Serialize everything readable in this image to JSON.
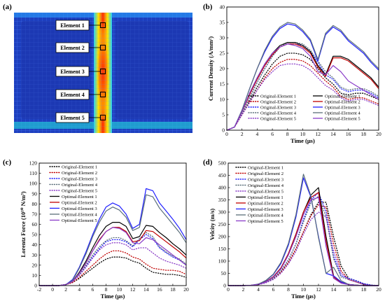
{
  "panel_labels": {
    "a": "(a)",
    "b": "(b)",
    "c": "(c)",
    "d": "(d)"
  },
  "panel_a": {
    "element_labels": [
      "Element 1",
      "Element 2",
      "Element 3",
      "Element 4",
      "Element 5"
    ],
    "colors": {
      "background": "#1d3fbf",
      "mesh": "#5a8cff",
      "hot": "#ff2a00",
      "warm": "#ffe600"
    }
  },
  "series_styles": {
    "names": [
      "Original-Element 1",
      "Original-Element 2",
      "Original-Element 3",
      "Original-Element 4",
      "Original-Element 5",
      "Optimal-Element 1",
      "Optimal-Element 2",
      "Optimal-Element 3",
      "Optimal-Element 4",
      "Optimal-Element 5"
    ],
    "colors": [
      "#000000",
      "#c00000",
      "#1f1fff",
      "#5a6e7a",
      "#8a3cc8",
      "#000000",
      "#c00000",
      "#1f1fff",
      "#5a6e7a",
      "#8a3cc8"
    ]
  },
  "chart_data": [
    {
      "id": "b",
      "type": "line",
      "xlabel": "Time (μs)",
      "ylabel": "Current Density (A/mm²)",
      "xlim": [
        0,
        20
      ],
      "ylim": [
        0,
        40
      ],
      "xticks": [
        0,
        2,
        4,
        6,
        8,
        10,
        12,
        14,
        16,
        18,
        20
      ],
      "yticks": [
        0,
        5,
        10,
        15,
        20,
        25,
        30,
        35,
        40
      ],
      "legend": "bottom-right-2col",
      "x": [
        0,
        1,
        2,
        3,
        4,
        5,
        6,
        7,
        8,
        9,
        10,
        11,
        12,
        13,
        14,
        15,
        16,
        17,
        18,
        19,
        20
      ],
      "series": [
        {
          "name": "Original-Element 1",
          "values": [
            0,
            1,
            5,
            9.5,
            14,
            18,
            21.5,
            24,
            25,
            25,
            24.5,
            23,
            20,
            17,
            15,
            12,
            11.5,
            12,
            12,
            11,
            10
          ]
        },
        {
          "name": "Original-Element 2",
          "values": [
            0,
            1,
            5,
            9,
            13,
            17,
            20,
            22,
            23,
            23,
            22.5,
            21,
            18.5,
            16,
            14,
            11,
            10,
            10.5,
            10.5,
            9.5,
            8.5
          ]
        },
        {
          "name": "Original-Element 3",
          "values": [
            0,
            1,
            5.5,
            10.5,
            15.5,
            20,
            24,
            27,
            28,
            28,
            27.5,
            25.5,
            22,
            18,
            16.5,
            13.5,
            12.5,
            13,
            13,
            12,
            10.5
          ]
        },
        {
          "name": "Original-Element 4",
          "values": [
            0,
            1,
            5.5,
            10.5,
            15.5,
            20,
            24,
            27,
            28.5,
            28.5,
            28,
            26,
            22.5,
            19,
            17,
            14,
            13,
            13.5,
            13.5,
            12.5,
            11
          ]
        },
        {
          "name": "Original-Element 5",
          "values": [
            0,
            1,
            5,
            9,
            13,
            16.5,
            19,
            21,
            21.5,
            21.5,
            21,
            19.5,
            17,
            14.5,
            13,
            10.5,
            9.5,
            10,
            10,
            9,
            8
          ]
        },
        {
          "name": "Optimal-Element 1",
          "values": [
            0,
            1,
            6,
            12,
            17,
            21.5,
            25,
            27.5,
            28.5,
            28.5,
            27.5,
            25.5,
            21,
            18,
            24,
            24,
            23,
            21,
            19,
            17,
            14
          ]
        },
        {
          "name": "Optimal-Element 2",
          "values": [
            0,
            1,
            6,
            11.5,
            16.5,
            21,
            24.5,
            27,
            28,
            28,
            27,
            25,
            20.5,
            17.5,
            23.5,
            23.5,
            22.5,
            20.5,
            18.5,
            16.5,
            13.5
          ]
        },
        {
          "name": "Optimal-Element 3",
          "values": [
            0,
            1,
            6.5,
            13.5,
            20,
            25.5,
            30,
            33,
            34.5,
            34,
            32,
            29,
            22.5,
            31,
            33.5,
            32,
            29,
            27,
            25,
            22,
            19.5
          ]
        },
        {
          "name": "Optimal-Element 4",
          "values": [
            0,
            1,
            6.5,
            13.5,
            20,
            26,
            30.5,
            33.5,
            35,
            34.5,
            32.5,
            29.5,
            23,
            31.5,
            34,
            32.5,
            29.5,
            27.5,
            25.5,
            22.5,
            20
          ]
        },
        {
          "name": "Optimal-Element 5",
          "values": [
            0,
            1,
            6,
            12,
            17,
            21.5,
            25,
            27,
            28,
            27.5,
            26.5,
            24,
            19,
            18,
            21,
            19,
            16,
            14.5,
            13,
            11.5,
            10
          ]
        }
      ]
    },
    {
      "id": "c",
      "type": "line",
      "xlabel": "Time (μs)",
      "ylabel": "Lorentz Force (10¹⁰ N/m³)",
      "xlim": [
        -2,
        20
      ],
      "ylim": [
        0,
        120
      ],
      "xticks": [
        -2,
        0,
        2,
        4,
        6,
        8,
        10,
        12,
        14,
        16,
        18,
        20
      ],
      "yticks": [
        0,
        10,
        20,
        30,
        40,
        50,
        60,
        70,
        80,
        90,
        100,
        110,
        120
      ],
      "legend": "top-left",
      "x": [
        -2,
        -1,
        0,
        1,
        2,
        3,
        4,
        5,
        6,
        7,
        8,
        9,
        10,
        11,
        12,
        13,
        14,
        15,
        16,
        17,
        18,
        19,
        20
      ],
      "series": [
        {
          "name": "Original-Element 1",
          "values": [
            0,
            0,
            0,
            0,
            1,
            3,
            7,
            12,
            17,
            22,
            26,
            28,
            28,
            27,
            24,
            22,
            17,
            13,
            12,
            11,
            11,
            10,
            8
          ]
        },
        {
          "name": "Original-Element 2",
          "values": [
            0,
            0,
            0,
            0,
            1,
            3,
            8,
            14,
            20,
            26,
            31,
            34,
            34,
            32,
            28,
            26,
            21,
            17,
            16,
            15,
            15,
            14,
            11
          ]
        },
        {
          "name": "Original-Element 3",
          "values": [
            0,
            0,
            0,
            0,
            1,
            4,
            10,
            19,
            28,
            36,
            43,
            45,
            45,
            43,
            38,
            45,
            50,
            46,
            37,
            32,
            28,
            25,
            20
          ]
        },
        {
          "name": "Original-Element 4",
          "values": [
            0,
            0,
            0,
            0,
            1,
            4,
            11,
            20,
            30,
            38,
            44,
            47,
            47,
            44,
            39,
            46,
            52,
            48,
            38,
            33,
            29,
            26,
            21
          ]
        },
        {
          "name": "Original-Element 5",
          "values": [
            0,
            0,
            0,
            0,
            1,
            4,
            10,
            18,
            27,
            35,
            40,
            42,
            42,
            40,
            35,
            37,
            37,
            32,
            27,
            24,
            22,
            20,
            17
          ]
        },
        {
          "name": "Optimal-Element 1",
          "values": [
            0,
            0,
            0,
            0,
            1,
            4,
            13,
            24,
            37,
            49,
            58,
            62,
            62,
            58,
            46,
            48,
            59,
            58,
            52,
            47,
            41,
            36,
            30
          ]
        },
        {
          "name": "Optimal-Element 2",
          "values": [
            0,
            0,
            0,
            0,
            1,
            4,
            12,
            22,
            34,
            45,
            53,
            57,
            57,
            53,
            43,
            44,
            54,
            53,
            48,
            43,
            38,
            33,
            27
          ]
        },
        {
          "name": "Optimal-Element 3",
          "values": [
            0,
            0,
            0,
            0,
            1,
            6,
            18,
            33,
            50,
            65,
            77,
            81,
            78,
            70,
            56,
            60,
            95,
            93,
            81,
            73,
            65,
            56,
            45
          ]
        },
        {
          "name": "Optimal-Element 4",
          "values": [
            0,
            0,
            0,
            0,
            1,
            5,
            17,
            31,
            48,
            62,
            73,
            77,
            74,
            67,
            54,
            57,
            89,
            87,
            76,
            68,
            60,
            52,
            42
          ]
        },
        {
          "name": "Optimal-Element 5",
          "values": [
            0,
            0,
            0,
            0,
            1,
            4,
            12,
            22,
            34,
            44,
            53,
            57,
            56,
            52,
            42,
            41,
            47,
            45,
            40,
            35,
            30,
            25,
            20
          ]
        }
      ]
    },
    {
      "id": "d",
      "type": "line",
      "xlabel": "Time (μs)",
      "ylabel": "Velcity (m/s)",
      "xlim": [
        0,
        20
      ],
      "ylim": [
        0,
        500
      ],
      "xticks": [
        0,
        2,
        4,
        6,
        8,
        10,
        12,
        14,
        16,
        18,
        20
      ],
      "yticks": [
        0,
        50,
        100,
        150,
        200,
        250,
        300,
        350,
        400,
        450,
        500
      ],
      "legend": "top-left",
      "x": [
        0,
        1,
        2,
        3,
        4,
        5,
        6,
        7,
        8,
        9,
        10,
        11,
        12,
        13,
        14,
        15,
        16,
        17,
        18,
        19,
        20
      ],
      "series": [
        {
          "name": "Original-Element 1",
          "values": [
            0,
            0,
            0,
            1,
            4,
            12,
            28,
            55,
            95,
            150,
            220,
            290,
            340,
            340,
            200,
            80,
            30,
            20,
            8,
            2,
            0
          ]
        },
        {
          "name": "Original-Element 2",
          "values": [
            0,
            0,
            0,
            1,
            4,
            12,
            28,
            55,
            95,
            150,
            220,
            285,
            330,
            320,
            170,
            60,
            25,
            15,
            5,
            1,
            0
          ]
        },
        {
          "name": "Original-Element 3",
          "values": [
            0,
            0,
            0,
            1,
            4,
            13,
            30,
            60,
            105,
            170,
            270,
            350,
            380,
            300,
            120,
            40,
            30,
            20,
            8,
            2,
            0
          ]
        },
        {
          "name": "Original-Element 4",
          "values": [
            0,
            0,
            0,
            1,
            4,
            13,
            30,
            60,
            105,
            170,
            260,
            340,
            365,
            280,
            110,
            35,
            25,
            15,
            5,
            1,
            0
          ]
        },
        {
          "name": "Original-Element 5",
          "values": [
            0,
            0,
            0,
            1,
            4,
            11,
            25,
            50,
            88,
            140,
            210,
            270,
            300,
            280,
            140,
            50,
            25,
            15,
            5,
            1,
            0
          ]
        },
        {
          "name": "Optimal-Element 1",
          "values": [
            0,
            0,
            0,
            1,
            5,
            16,
            36,
            72,
            130,
            210,
            300,
            370,
            400,
            200,
            40,
            15,
            5,
            2,
            0,
            0,
            0
          ]
        },
        {
          "name": "Optimal-Element 2",
          "values": [
            0,
            0,
            0,
            1,
            5,
            16,
            36,
            72,
            130,
            210,
            300,
            360,
            380,
            180,
            35,
            12,
            5,
            2,
            0,
            0,
            0
          ]
        },
        {
          "name": "Optimal-Element 3",
          "values": [
            0,
            0,
            0,
            1,
            6,
            20,
            45,
            90,
            165,
            280,
            440,
            360,
            200,
            50,
            40,
            15,
            5,
            2,
            0,
            0,
            0
          ]
        },
        {
          "name": "Optimal-Element 4",
          "values": [
            0,
            0,
            0,
            1,
            6,
            21,
            47,
            95,
            172,
            290,
            455,
            365,
            195,
            50,
            75,
            20,
            5,
            2,
            0,
            0,
            0
          ]
        },
        {
          "name": "Optimal-Element 5",
          "values": [
            0,
            0,
            0,
            1,
            5,
            15,
            34,
            68,
            125,
            200,
            290,
            350,
            360,
            160,
            30,
            10,
            4,
            1,
            0,
            0,
            0
          ]
        }
      ]
    }
  ]
}
